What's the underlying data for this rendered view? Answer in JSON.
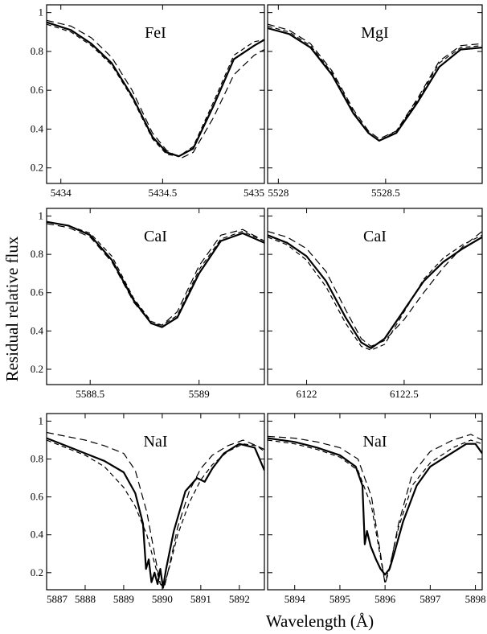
{
  "figure": {
    "ylabel": "Residual relative flux",
    "xlabel": "Wavelength (Å)"
  },
  "chart_data": [
    {
      "type": "line",
      "title": "FeI",
      "xlim": [
        5433.93,
        5435.0
      ],
      "ylim": [
        0.12,
        1.04
      ],
      "xticks": [
        5434,
        5434.5,
        5435
      ],
      "xtick_labels": [
        "5434",
        "5434.5",
        "5435"
      ],
      "yticks": [
        0.2,
        0.4,
        0.6,
        0.8,
        1
      ],
      "ytick_labels": [
        "0.2",
        "0.4",
        "0.6",
        "0.8",
        "1"
      ],
      "series": [
        {
          "style": "solid",
          "x": [
            5433.93,
            5434.05,
            5434.15,
            5434.25,
            5434.35,
            5434.45,
            5434.52,
            5434.58,
            5434.65,
            5434.75,
            5434.85,
            5434.95,
            5435.0
          ],
          "values": [
            0.95,
            0.91,
            0.84,
            0.74,
            0.57,
            0.36,
            0.28,
            0.26,
            0.3,
            0.52,
            0.76,
            0.83,
            0.86
          ]
        },
        {
          "style": "dashed",
          "x": [
            5433.93,
            5434.05,
            5434.15,
            5434.25,
            5434.35,
            5434.45,
            5434.52,
            5434.59,
            5434.65,
            5434.75,
            5434.85,
            5434.95,
            5435.0
          ],
          "values": [
            0.96,
            0.93,
            0.87,
            0.77,
            0.6,
            0.38,
            0.29,
            0.25,
            0.28,
            0.46,
            0.68,
            0.78,
            0.81
          ]
        },
        {
          "style": "dashed",
          "x": [
            5433.93,
            5434.05,
            5434.15,
            5434.25,
            5434.35,
            5434.45,
            5434.52,
            5434.58,
            5434.65,
            5434.75,
            5434.85,
            5434.95,
            5435.0
          ],
          "values": [
            0.94,
            0.9,
            0.83,
            0.73,
            0.56,
            0.35,
            0.27,
            0.26,
            0.31,
            0.54,
            0.78,
            0.85,
            0.86
          ]
        }
      ]
    },
    {
      "type": "line",
      "title": "MgI",
      "xlim": [
        5527.95,
        5528.95
      ],
      "ylim": [
        0.12,
        1.04
      ],
      "xticks": [
        5528,
        5528.5
      ],
      "xtick_labels": [
        "5528",
        "5528.5"
      ],
      "yticks": [
        0.2,
        0.4,
        0.6,
        0.8,
        1
      ],
      "ytick_labels": [
        "",
        "",
        "",
        "",
        ""
      ],
      "series": [
        {
          "style": "solid",
          "x": [
            5527.95,
            5528.05,
            5528.15,
            5528.25,
            5528.35,
            5528.42,
            5528.47,
            5528.55,
            5528.65,
            5528.75,
            5528.85,
            5528.95
          ],
          "values": [
            0.92,
            0.89,
            0.82,
            0.68,
            0.48,
            0.38,
            0.34,
            0.38,
            0.54,
            0.72,
            0.81,
            0.82
          ]
        },
        {
          "style": "dashed",
          "x": [
            5527.95,
            5528.05,
            5528.15,
            5528.25,
            5528.35,
            5528.42,
            5528.47,
            5528.55,
            5528.65,
            5528.75,
            5528.85,
            5528.95
          ],
          "values": [
            0.94,
            0.91,
            0.84,
            0.7,
            0.5,
            0.39,
            0.35,
            0.39,
            0.56,
            0.75,
            0.83,
            0.84
          ]
        },
        {
          "style": "dashed",
          "x": [
            5527.95,
            5528.05,
            5528.15,
            5528.25,
            5528.35,
            5528.42,
            5528.47,
            5528.55,
            5528.65,
            5528.75,
            5528.85,
            5528.95
          ],
          "values": [
            0.93,
            0.9,
            0.83,
            0.69,
            0.49,
            0.38,
            0.34,
            0.39,
            0.55,
            0.74,
            0.82,
            0.83
          ]
        }
      ]
    },
    {
      "type": "line",
      "title": "CaI",
      "xlim": [
        5588.3,
        5589.3
      ],
      "ylim": [
        0.12,
        1.04
      ],
      "xticks": [
        5588.5,
        5589
      ],
      "xtick_labels": [
        "5588.5",
        "5589"
      ],
      "yticks": [
        0.2,
        0.4,
        0.6,
        0.8,
        1
      ],
      "ytick_labels": [
        "0.2",
        "0.4",
        "0.6",
        "0.8",
        "1"
      ],
      "series": [
        {
          "style": "solid",
          "x": [
            5588.3,
            5588.4,
            5588.5,
            5588.6,
            5588.7,
            5588.78,
            5588.83,
            5588.9,
            5589.0,
            5589.1,
            5589.2,
            5589.3
          ],
          "values": [
            0.97,
            0.95,
            0.9,
            0.77,
            0.56,
            0.44,
            0.42,
            0.47,
            0.7,
            0.87,
            0.91,
            0.86
          ]
        },
        {
          "style": "dashed",
          "x": [
            5588.3,
            5588.4,
            5588.5,
            5588.6,
            5588.7,
            5588.78,
            5588.83,
            5588.9,
            5589.0,
            5589.1,
            5589.2,
            5589.3
          ],
          "values": [
            0.96,
            0.94,
            0.89,
            0.76,
            0.55,
            0.44,
            0.43,
            0.5,
            0.74,
            0.9,
            0.93,
            0.87
          ]
        },
        {
          "style": "dashed",
          "x": [
            5588.3,
            5588.4,
            5588.5,
            5588.6,
            5588.7,
            5588.78,
            5588.83,
            5588.9,
            5589.0,
            5589.1,
            5589.2,
            5589.3
          ],
          "values": [
            0.97,
            0.95,
            0.91,
            0.79,
            0.57,
            0.45,
            0.43,
            0.48,
            0.72,
            0.88,
            0.92,
            0.87
          ]
        }
      ]
    },
    {
      "type": "line",
      "title": "CaI",
      "xlim": [
        6121.8,
        6122.9
      ],
      "ylim": [
        0.12,
        1.04
      ],
      "xticks": [
        6122,
        6122.5
      ],
      "xtick_labels": [
        "6122",
        "6122.5"
      ],
      "yticks": [
        0.2,
        0.4,
        0.6,
        0.8,
        1
      ],
      "ytick_labels": [
        "",
        "",
        "",
        "",
        ""
      ],
      "series": [
        {
          "style": "solid",
          "x": [
            6121.8,
            6121.9,
            6122.0,
            6122.1,
            6122.2,
            6122.28,
            6122.33,
            6122.4,
            6122.5,
            6122.6,
            6122.7,
            6122.8,
            6122.9
          ],
          "values": [
            0.9,
            0.86,
            0.79,
            0.66,
            0.47,
            0.34,
            0.31,
            0.36,
            0.51,
            0.66,
            0.76,
            0.83,
            0.89
          ]
        },
        {
          "style": "dashed",
          "x": [
            6121.8,
            6121.9,
            6122.0,
            6122.1,
            6122.2,
            6122.28,
            6122.33,
            6122.4,
            6122.5,
            6122.6,
            6122.7,
            6122.8,
            6122.9
          ],
          "values": [
            0.92,
            0.89,
            0.83,
            0.71,
            0.51,
            0.36,
            0.32,
            0.35,
            0.46,
            0.6,
            0.73,
            0.84,
            0.92
          ]
        },
        {
          "style": "dashed",
          "x": [
            6121.8,
            6121.9,
            6122.0,
            6122.1,
            6122.2,
            6122.28,
            6122.33,
            6122.4,
            6122.5,
            6122.6,
            6122.7,
            6122.8,
            6122.9
          ],
          "values": [
            0.89,
            0.85,
            0.77,
            0.63,
            0.44,
            0.32,
            0.3,
            0.33,
            0.5,
            0.67,
            0.78,
            0.85,
            0.9
          ]
        }
      ]
    },
    {
      "type": "line",
      "title": "NaI",
      "xlim": [
        5887.0,
        5892.65
      ],
      "ylim": [
        0.11,
        1.04
      ],
      "xticks": [
        5887,
        5888,
        5889,
        5890,
        5891,
        5892
      ],
      "xtick_labels": [
        "5887",
        "5888",
        "5889",
        "5890",
        "5891",
        "5892"
      ],
      "yticks": [
        0.2,
        0.4,
        0.6,
        0.8,
        1
      ],
      "ytick_labels": [
        "0.2",
        "0.4",
        "0.6",
        "0.8",
        "1"
      ],
      "series": [
        {
          "style": "solid",
          "x": [
            5887.0,
            5887.5,
            5888.0,
            5888.5,
            5889.0,
            5889.3,
            5889.5,
            5889.58,
            5889.65,
            5889.72,
            5889.8,
            5889.88,
            5889.95,
            5890.02,
            5890.1,
            5890.3,
            5890.6,
            5890.9,
            5891.1,
            5891.3,
            5891.6,
            5892.0,
            5892.4,
            5892.65
          ],
          "values": [
            0.91,
            0.87,
            0.83,
            0.79,
            0.73,
            0.62,
            0.46,
            0.22,
            0.27,
            0.15,
            0.2,
            0.14,
            0.22,
            0.12,
            0.22,
            0.42,
            0.63,
            0.7,
            0.68,
            0.75,
            0.83,
            0.88,
            0.86,
            0.74
          ]
        },
        {
          "style": "dashed",
          "x": [
            5887.0,
            5887.5,
            5888.0,
            5888.5,
            5889.0,
            5889.3,
            5889.6,
            5889.8,
            5889.95,
            5890.05,
            5890.2,
            5890.4,
            5890.7,
            5891.0,
            5891.3,
            5891.7,
            5892.1,
            5892.45,
            5892.65
          ],
          "values": [
            0.94,
            0.92,
            0.9,
            0.87,
            0.83,
            0.74,
            0.52,
            0.3,
            0.14,
            0.12,
            0.25,
            0.44,
            0.63,
            0.75,
            0.82,
            0.87,
            0.9,
            0.87,
            0.85
          ]
        },
        {
          "style": "dashed",
          "x": [
            5887.0,
            5887.5,
            5888.0,
            5888.5,
            5889.0,
            5889.3,
            5889.6,
            5889.8,
            5889.95,
            5890.05,
            5890.2,
            5890.4,
            5890.7,
            5891.0,
            5891.3,
            5891.7,
            5892.1,
            5892.45,
            5892.65
          ],
          "values": [
            0.9,
            0.86,
            0.82,
            0.76,
            0.65,
            0.55,
            0.4,
            0.25,
            0.14,
            0.13,
            0.24,
            0.4,
            0.57,
            0.69,
            0.77,
            0.84,
            0.88,
            0.87,
            0.84
          ]
        }
      ]
    },
    {
      "type": "line",
      "title": "NaI",
      "xlim": [
        5893.4,
        5898.15
      ],
      "ylim": [
        0.11,
        1.04
      ],
      "xticks": [
        5894,
        5895,
        5896,
        5897,
        5898
      ],
      "xtick_labels": [
        "5894",
        "5895",
        "5896",
        "5897",
        "5898"
      ],
      "yticks": [
        0.2,
        0.4,
        0.6,
        0.8,
        1
      ],
      "ytick_labels": [
        "",
        "",
        "",
        "",
        ""
      ],
      "series": [
        {
          "style": "solid",
          "x": [
            5893.4,
            5894.0,
            5894.5,
            5895.0,
            5895.35,
            5895.5,
            5895.55,
            5895.6,
            5895.68,
            5895.8,
            5895.9,
            5896.0,
            5896.1,
            5896.2,
            5896.4,
            5896.7,
            5897.0,
            5897.4,
            5897.8,
            5898.0,
            5898.15
          ],
          "values": [
            0.91,
            0.89,
            0.86,
            0.82,
            0.76,
            0.66,
            0.35,
            0.42,
            0.34,
            0.27,
            0.22,
            0.19,
            0.22,
            0.3,
            0.47,
            0.66,
            0.76,
            0.82,
            0.88,
            0.88,
            0.83
          ]
        },
        {
          "style": "dashed",
          "x": [
            5893.4,
            5894.0,
            5894.5,
            5895.0,
            5895.4,
            5895.7,
            5895.9,
            5896.0,
            5896.1,
            5896.3,
            5896.6,
            5897.0,
            5897.5,
            5897.9,
            5898.15
          ],
          "values": [
            0.92,
            0.91,
            0.89,
            0.86,
            0.8,
            0.6,
            0.3,
            0.14,
            0.22,
            0.46,
            0.72,
            0.84,
            0.9,
            0.93,
            0.9
          ]
        },
        {
          "style": "dashed",
          "x": [
            5893.4,
            5894.0,
            5894.5,
            5895.0,
            5895.4,
            5895.7,
            5895.9,
            5896.0,
            5896.1,
            5896.3,
            5896.6,
            5897.0,
            5897.5,
            5897.9,
            5898.15
          ],
          "values": [
            0.9,
            0.88,
            0.85,
            0.81,
            0.74,
            0.55,
            0.28,
            0.15,
            0.23,
            0.44,
            0.66,
            0.78,
            0.86,
            0.9,
            0.88
          ]
        }
      ]
    }
  ]
}
